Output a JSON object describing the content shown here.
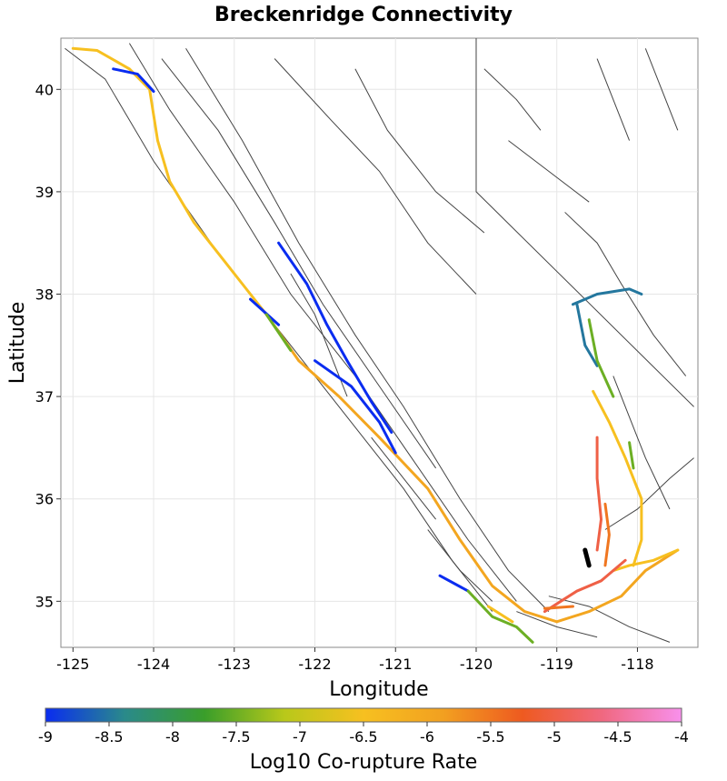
{
  "chart_data": {
    "type": "map",
    "title": "Breckenridge Connectivity",
    "xlabel": "Longitude",
    "ylabel": "Latitude",
    "xlim": [
      -125.15,
      -117.25
    ],
    "ylim": [
      34.55,
      40.5
    ],
    "xticks": [
      -125,
      -124,
      -123,
      -122,
      -121,
      -120,
      -119,
      -118
    ],
    "yticks": [
      35,
      36,
      37,
      38,
      39,
      40
    ],
    "grid": true,
    "colorbar": {
      "label": "Log10 Co-rupture Rate",
      "min": -9,
      "max": -4,
      "ticks": [
        -9,
        -8.5,
        -8,
        -7.5,
        -7,
        -6.5,
        -6,
        -5.5,
        -5,
        -4.5,
        -4
      ],
      "tick_labels": [
        "-9",
        "-8.5",
        "-8",
        "-7.5",
        "-7",
        "-6.5",
        "-6",
        "-5.5",
        "-5",
        "-4.5",
        "-4"
      ],
      "colors": [
        "#0a2cf0",
        "#2a8a8a",
        "#3a9e2a",
        "#b8c81a",
        "#f7c020",
        "#f2a020",
        "#ee5a20",
        "#f06880",
        "#f890ec"
      ]
    },
    "background_faults": [
      [
        [
          -125.1,
          40.4
        ],
        [
          -124.6,
          40.1
        ],
        [
          -124.0,
          39.3
        ],
        [
          -123.2,
          38.4
        ],
        [
          -122.4,
          37.6
        ],
        [
          -121.6,
          36.8
        ],
        [
          -120.9,
          36.1
        ],
        [
          -120.3,
          35.4
        ],
        [
          -119.8,
          34.9
        ]
      ],
      [
        [
          -124.3,
          40.45
        ],
        [
          -123.8,
          39.8
        ],
        [
          -123.0,
          38.9
        ],
        [
          -122.3,
          38.0
        ],
        [
          -121.5,
          37.2
        ],
        [
          -120.8,
          36.4
        ],
        [
          -120.1,
          35.6
        ],
        [
          -119.5,
          35.0
        ]
      ],
      [
        [
          -123.9,
          40.3
        ],
        [
          -123.2,
          39.6
        ],
        [
          -122.5,
          38.7
        ],
        [
          -121.9,
          37.9
        ],
        [
          -121.2,
          37.1
        ],
        [
          -120.5,
          36.3
        ]
      ],
      [
        [
          -123.6,
          40.4
        ],
        [
          -122.9,
          39.5
        ],
        [
          -122.2,
          38.5
        ],
        [
          -121.5,
          37.6
        ],
        [
          -120.9,
          36.9
        ],
        [
          -120.2,
          36.0
        ],
        [
          -119.6,
          35.3
        ],
        [
          -119.1,
          34.9
        ]
      ],
      [
        [
          -122.5,
          40.3
        ],
        [
          -121.8,
          39.7
        ],
        [
          -121.2,
          39.2
        ],
        [
          -120.6,
          38.5
        ],
        [
          -120.0,
          38.0
        ]
      ],
      [
        [
          -121.5,
          40.2
        ],
        [
          -121.1,
          39.6
        ],
        [
          -120.5,
          39.0
        ],
        [
          -119.9,
          38.6
        ]
      ],
      [
        [
          -122.3,
          38.2
        ],
        [
          -122.0,
          37.8
        ],
        [
          -121.8,
          37.4
        ],
        [
          -121.6,
          37.0
        ]
      ],
      [
        [
          -119.1,
          35.05
        ],
        [
          -118.6,
          34.95
        ],
        [
          -118.1,
          34.75
        ],
        [
          -117.6,
          34.6
        ]
      ],
      [
        [
          -119.5,
          34.9
        ],
        [
          -119.0,
          34.75
        ],
        [
          -118.5,
          34.65
        ]
      ],
      [
        [
          -118.4,
          35.7
        ],
        [
          -118.0,
          35.9
        ],
        [
          -117.6,
          36.2
        ],
        [
          -117.3,
          36.4
        ]
      ],
      [
        [
          -118.9,
          38.8
        ],
        [
          -118.5,
          38.5
        ],
        [
          -118.2,
          38.1
        ],
        [
          -117.8,
          37.6
        ],
        [
          -117.4,
          37.2
        ]
      ],
      [
        [
          -119.6,
          39.5
        ],
        [
          -119.1,
          39.2
        ],
        [
          -118.6,
          38.9
        ]
      ],
      [
        [
          -119.9,
          40.2
        ],
        [
          -119.5,
          39.9
        ],
        [
          -119.2,
          39.6
        ]
      ],
      [
        [
          -118.3,
          37.2
        ],
        [
          -118.1,
          36.8
        ],
        [
          -117.9,
          36.4
        ],
        [
          -117.6,
          35.9
        ]
      ],
      [
        [
          -120.6,
          35.7
        ],
        [
          -120.2,
          35.3
        ],
        [
          -119.8,
          35.0
        ]
      ],
      [
        [
          -121.3,
          36.6
        ],
        [
          -120.9,
          36.2
        ],
        [
          -120.5,
          35.8
        ]
      ],
      [
        [
          -120.0,
          40.5
        ],
        [
          -120.0,
          39.0
        ],
        [
          -117.3,
          36.9
        ]
      ],
      [
        [
          -118.5,
          40.3
        ],
        [
          -118.3,
          39.9
        ],
        [
          -118.1,
          39.5
        ]
      ],
      [
        [
          -117.9,
          40.4
        ],
        [
          -117.7,
          40.0
        ],
        [
          -117.5,
          39.6
        ]
      ]
    ],
    "ruptures": [
      {
        "value": -6.5,
        "points": [
          [
            -125.0,
            40.4
          ],
          [
            -124.7,
            40.38
          ],
          [
            -124.3,
            40.2
          ],
          [
            -124.05,
            40.0
          ],
          [
            -123.95,
            39.5
          ],
          [
            -123.8,
            39.1
          ],
          [
            -123.5,
            38.7
          ],
          [
            -123.2,
            38.4
          ],
          [
            -122.9,
            38.1
          ],
          [
            -122.6,
            37.8
          ]
        ]
      },
      {
        "value": -6.0,
        "points": [
          [
            -122.6,
            37.8
          ],
          [
            -122.2,
            37.35
          ],
          [
            -121.7,
            37.0
          ],
          [
            -121.2,
            36.6
          ],
          [
            -120.6,
            36.1
          ],
          [
            -120.2,
            35.6
          ],
          [
            -119.8,
            35.15
          ],
          [
            -119.4,
            34.9
          ],
          [
            -119.0,
            34.8
          ]
        ]
      },
      {
        "value": -6.0,
        "points": [
          [
            -119.0,
            34.8
          ],
          [
            -118.6,
            34.9
          ],
          [
            -118.2,
            35.05
          ],
          [
            -117.9,
            35.3
          ],
          [
            -117.5,
            35.5
          ]
        ]
      },
      {
        "value": -6.5,
        "points": [
          [
            -117.5,
            35.5
          ],
          [
            -117.8,
            35.4
          ],
          [
            -118.1,
            35.35
          ],
          [
            -118.3,
            35.3
          ]
        ]
      },
      {
        "value": -9.0,
        "points": [
          [
            -124.5,
            40.2
          ],
          [
            -124.2,
            40.15
          ],
          [
            -124.0,
            39.98
          ]
        ]
      },
      {
        "value": -9.0,
        "points": [
          [
            -122.45,
            38.5
          ],
          [
            -122.1,
            38.1
          ],
          [
            -121.85,
            37.7
          ],
          [
            -121.6,
            37.35
          ],
          [
            -121.3,
            36.95
          ],
          [
            -121.05,
            36.65
          ]
        ]
      },
      {
        "value": -9.0,
        "points": [
          [
            -122.8,
            37.95
          ],
          [
            -122.45,
            37.7
          ]
        ]
      },
      {
        "value": -9.0,
        "points": [
          [
            -122.0,
            37.35
          ],
          [
            -121.55,
            37.1
          ],
          [
            -121.2,
            36.75
          ],
          [
            -121.0,
            36.45
          ]
        ]
      },
      {
        "value": -7.5,
        "points": [
          [
            -122.6,
            37.8
          ],
          [
            -122.3,
            37.45
          ]
        ]
      },
      {
        "value": -9.0,
        "points": [
          [
            -120.45,
            35.25
          ],
          [
            -120.1,
            35.1
          ]
        ]
      },
      {
        "value": -7.5,
        "points": [
          [
            -120.1,
            35.1
          ],
          [
            -119.8,
            34.85
          ],
          [
            -119.5,
            34.75
          ],
          [
            -119.3,
            34.6
          ]
        ]
      },
      {
        "value": -6.5,
        "points": [
          [
            -119.85,
            34.95
          ],
          [
            -119.55,
            34.8
          ]
        ]
      },
      {
        "value": -5.0,
        "points": [
          [
            -119.15,
            34.9
          ],
          [
            -118.95,
            35.0
          ],
          [
            -118.75,
            35.1
          ],
          [
            -118.45,
            35.2
          ],
          [
            -118.15,
            35.4
          ]
        ]
      },
      {
        "value": -5.0,
        "points": [
          [
            -118.5,
            36.6
          ],
          [
            -118.5,
            36.2
          ],
          [
            -118.45,
            35.8
          ],
          [
            -118.5,
            35.5
          ]
        ]
      },
      {
        "value": -5.5,
        "points": [
          [
            -118.4,
            35.95
          ],
          [
            -118.35,
            35.65
          ],
          [
            -118.4,
            35.35
          ]
        ]
      },
      {
        "value": -5.5,
        "points": [
          [
            -119.15,
            34.93
          ],
          [
            -118.8,
            34.95
          ]
        ]
      },
      {
        "value": -8.5,
        "points": [
          [
            -118.75,
            37.9
          ],
          [
            -118.65,
            37.5
          ],
          [
            -118.5,
            37.3
          ]
        ]
      },
      {
        "value": -8.5,
        "points": [
          [
            -118.8,
            37.9
          ],
          [
            -118.5,
            38.0
          ],
          [
            -118.1,
            38.05
          ],
          [
            -117.95,
            38.0
          ]
        ]
      },
      {
        "value": -7.5,
        "points": [
          [
            -118.6,
            37.75
          ],
          [
            -118.5,
            37.35
          ],
          [
            -118.3,
            37.0
          ]
        ]
      },
      {
        "value": -6.5,
        "points": [
          [
            -118.55,
            37.05
          ],
          [
            -118.35,
            36.75
          ],
          [
            -118.15,
            36.4
          ],
          [
            -117.95,
            36.0
          ],
          [
            -117.95,
            35.6
          ],
          [
            -118.05,
            35.35
          ]
        ]
      },
      {
        "value": -7.5,
        "points": [
          [
            -118.1,
            36.55
          ],
          [
            -118.05,
            36.3
          ]
        ]
      },
      {
        "value": -4.0,
        "points": [
          [
            -118.65,
            35.5
          ],
          [
            -118.6,
            35.35
          ]
        ]
      }
    ]
  }
}
